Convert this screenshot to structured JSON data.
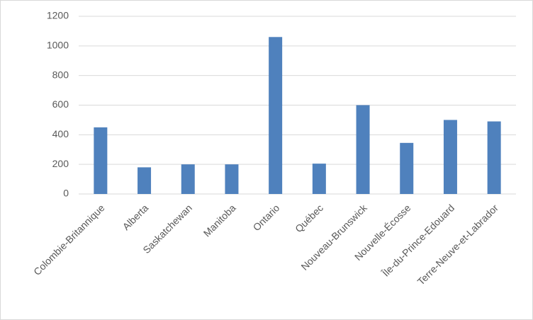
{
  "chart_data": {
    "type": "bar",
    "categories": [
      "Colombie-Britannique",
      "Alberta",
      "Saskatchewan",
      "Manitoba",
      "Ontario",
      "Québec",
      "Nouveau-Brunswick",
      "Nouvelle-Écosse",
      "Île-du-Prince-Edouard",
      "Terre-Neuve-et-Labrador"
    ],
    "values": [
      450,
      180,
      200,
      200,
      1060,
      205,
      600,
      345,
      500,
      490
    ],
    "color": "#4f81bd",
    "ylim": [
      0,
      1200
    ],
    "yticks": [
      0,
      200,
      400,
      600,
      800,
      1000,
      1200
    ],
    "grid": true
  }
}
